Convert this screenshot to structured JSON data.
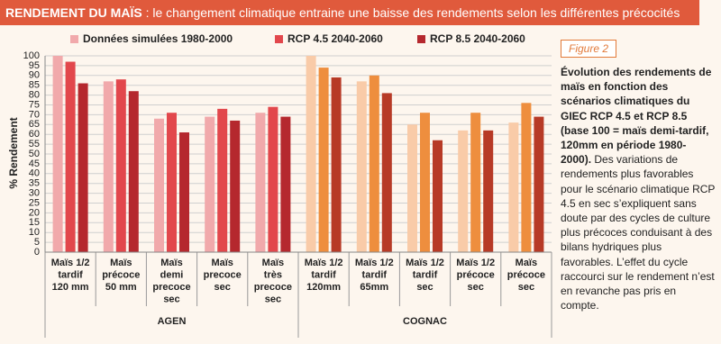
{
  "chart_data": {
    "type": "bar",
    "title": "RENDEMENT DU MAÏS",
    "subtitle": ": le changement climatique entraine une baisse des rendements selon les différentes précocités",
    "ylabel": "% Rendement",
    "ylim": [
      0,
      100
    ],
    "yticks": [
      0,
      5,
      10,
      15,
      20,
      25,
      30,
      35,
      40,
      45,
      50,
      55,
      60,
      65,
      70,
      75,
      80,
      85,
      90,
      95,
      100
    ],
    "grid": true,
    "legend": "top",
    "groups": [
      {
        "name": "AGEN",
        "categories": [
          [
            "Maïs 1/2",
            "tardif",
            "120 mm"
          ],
          [
            "Maïs",
            "précoce",
            "50 mm"
          ],
          [
            "Maïs",
            "demi",
            "precoce",
            "sec"
          ],
          [
            "Maïs",
            "precoce",
            "sec"
          ],
          [
            "Maïs",
            "très",
            "precoce",
            "sec"
          ]
        ]
      },
      {
        "name": "COGNAC",
        "colors": [
          "#f9cba8",
          "#ee8e3e",
          "#b73a26"
        ],
        "categories": [
          [
            "Maïs 1/2",
            "tardif",
            "120mm"
          ],
          [
            "Maïs 1/2",
            "tardif",
            "65mm"
          ],
          [
            "Maïs 1/2",
            "tardif",
            "sec"
          ],
          [
            "Maïs 1/2",
            "précoce",
            "sec"
          ],
          [
            "Maïs",
            "précoce",
            "sec"
          ]
        ]
      }
    ],
    "series": [
      {
        "name": "Données simulées 1980-2000",
        "color": "#f1a9ab",
        "values": [
          100,
          87,
          68,
          69,
          71,
          100,
          87,
          65,
          62,
          66
        ]
      },
      {
        "name": "RCP 4.5 2040-2060",
        "color": "#e2474c",
        "values": [
          97,
          88,
          71,
          73,
          74,
          94,
          90,
          71,
          71,
          76
        ]
      },
      {
        "name": "RCP 8.5 2040-2060",
        "color": "#b5282e",
        "values": [
          86,
          82,
          61,
          67,
          69,
          89,
          81,
          57,
          62,
          69
        ]
      }
    ]
  },
  "panel": {
    "figure_label": "Figure 2",
    "caption_bold": "Évolution des rendements de maïs en fonction des scénarios climatiques du GIEC RCP 4.5 et RCP 8.5 (base 100 = maïs demi-tardif, 120mm en période 1980-2000).",
    "caption": " Des variations de rendements plus favorables pour le scénario climatique RCP 4.5 en sec s’expliquent sans doute par des cycles de culture plus précoces conduisant à des bilans hydriques plus favorables. L’effet du cycle raccourci sur le rendement n’est en revanche pas pris en compte."
  }
}
